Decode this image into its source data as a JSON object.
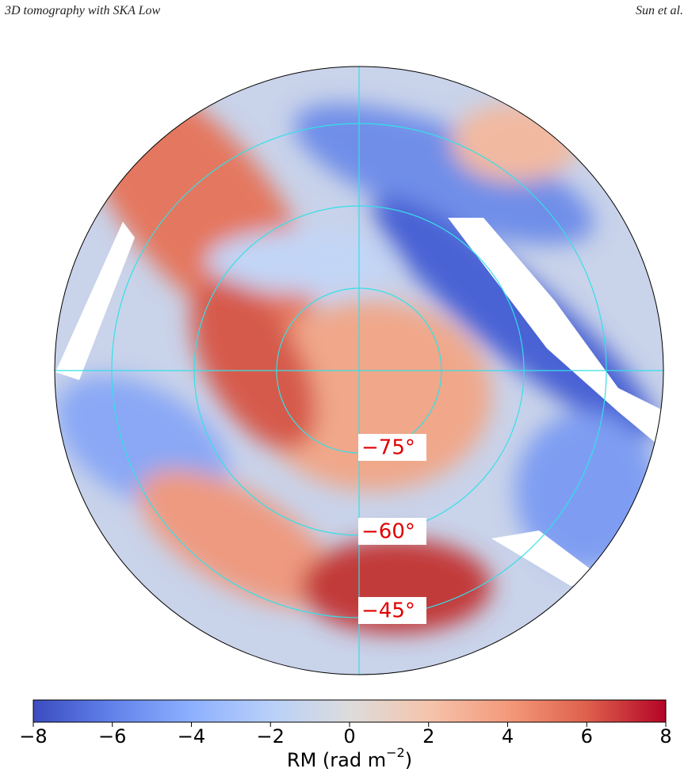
{
  "header": {
    "left": "3D tomography with SKA Low",
    "right": "Sun et al."
  },
  "map": {
    "ring_labels": [
      "−75°",
      "−60°",
      "−45°"
    ]
  },
  "colorbar": {
    "xlim": [
      -8,
      8
    ],
    "xticks": [
      {
        "value": -8,
        "label": "−8"
      },
      {
        "value": -6,
        "label": "−6"
      },
      {
        "value": -4,
        "label": "−4"
      },
      {
        "value": -2,
        "label": "−2"
      },
      0,
      2,
      4,
      6,
      8
    ],
    "label": {
      "text": "RM (rad m",
      "superscript": "−2",
      "close": ")"
    }
  }
}
